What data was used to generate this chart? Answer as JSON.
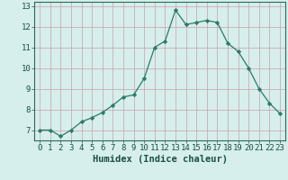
{
  "x": [
    0,
    1,
    2,
    3,
    4,
    5,
    6,
    7,
    8,
    9,
    10,
    11,
    12,
    13,
    14,
    15,
    16,
    17,
    18,
    19,
    20,
    21,
    22,
    23
  ],
  "y": [
    7.0,
    7.0,
    6.7,
    7.0,
    7.4,
    7.6,
    7.85,
    8.2,
    8.6,
    8.7,
    9.5,
    11.0,
    11.3,
    12.8,
    12.1,
    12.2,
    12.3,
    12.2,
    11.2,
    10.8,
    10.0,
    9.0,
    8.3,
    7.8
  ],
  "xlabel": "Humidex (Indice chaleur)",
  "xlim": [
    -0.5,
    23.5
  ],
  "ylim": [
    6.5,
    13.2
  ],
  "yticks": [
    7,
    8,
    9,
    10,
    11,
    12,
    13
  ],
  "xticks": [
    0,
    1,
    2,
    3,
    4,
    5,
    6,
    7,
    8,
    9,
    10,
    11,
    12,
    13,
    14,
    15,
    16,
    17,
    18,
    19,
    20,
    21,
    22,
    23
  ],
  "line_color": "#2a7a6a",
  "marker_color": "#2a7a6a",
  "bg_color": "#d6eeec",
  "grid_color_h": "#c8a0aa",
  "grid_color_v": "#c8a0aa",
  "axis_color": "#2a6a5a",
  "tick_color": "#1a5040",
  "label_fontsize": 7.5,
  "tick_fontsize": 6.5
}
